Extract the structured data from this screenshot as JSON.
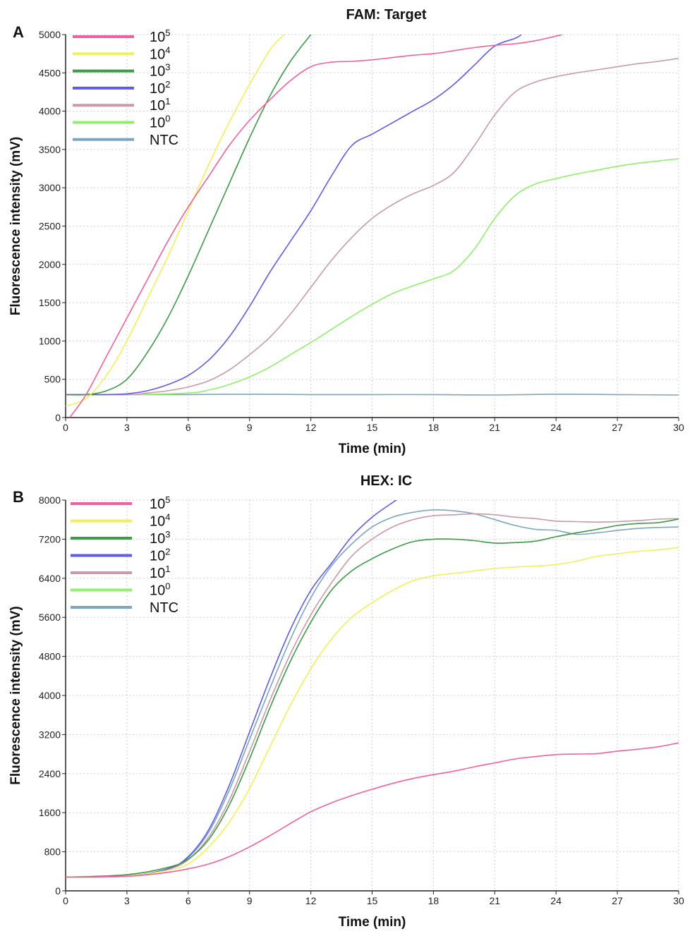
{
  "chart_data": [
    {
      "type": "line",
      "panel": "A",
      "title": "FAM: Target",
      "xlabel": "Time (min)",
      "ylabel": "Fluorescence intensity (mV)",
      "xlim": [
        0,
        30
      ],
      "ylim": [
        0,
        5000
      ],
      "xticks": [
        0,
        3,
        6,
        9,
        12,
        15,
        18,
        21,
        24,
        27,
        30
      ],
      "yticks": [
        0,
        500,
        1000,
        1500,
        2000,
        2500,
        3000,
        3500,
        4000,
        4500,
        5000
      ],
      "grid": true,
      "legend_position": "top-left",
      "series": [
        {
          "name": "10",
          "sup": "5",
          "color": "#f0609e",
          "x": [
            0.2,
            1,
            2,
            3,
            4,
            5,
            6,
            7,
            8,
            9,
            10,
            11,
            12,
            13,
            14,
            15,
            16,
            17,
            18,
            19,
            20,
            21,
            22,
            23,
            24,
            24.3
          ],
          "y": [
            0,
            300,
            800,
            1300,
            1800,
            2300,
            2750,
            3150,
            3550,
            3880,
            4150,
            4400,
            4580,
            4640,
            4650,
            4670,
            4700,
            4730,
            4750,
            4790,
            4830,
            4860,
            4880,
            4920,
            4980,
            5000
          ]
        },
        {
          "name": "10",
          "sup": "4",
          "color": "#f2f059",
          "x": [
            0,
            1,
            2,
            3,
            4,
            5,
            6,
            7,
            8,
            9,
            10,
            10.7
          ],
          "y": [
            150,
            250,
            550,
            1000,
            1550,
            2100,
            2700,
            3300,
            3850,
            4350,
            4800,
            5000
          ]
        },
        {
          "name": "10",
          "sup": "3",
          "color": "#3d9a45",
          "x": [
            0,
            1,
            2,
            3,
            4,
            5,
            6,
            7,
            8,
            9,
            10,
            11,
            12
          ],
          "y": [
            300,
            300,
            350,
            500,
            850,
            1300,
            1850,
            2450,
            3050,
            3650,
            4200,
            4650,
            5000
          ]
        },
        {
          "name": "10",
          "sup": "2",
          "color": "#5e5ce6",
          "x": [
            0,
            2,
            3,
            4,
            5,
            6,
            7,
            8,
            9,
            10,
            11,
            12,
            13,
            14,
            15,
            16,
            17,
            18,
            19,
            20,
            21,
            22,
            22.3
          ],
          "y": [
            300,
            300,
            310,
            350,
            430,
            550,
            750,
            1050,
            1450,
            1900,
            2300,
            2700,
            3150,
            3550,
            3700,
            3850,
            4000,
            4150,
            4350,
            4600,
            4850,
            4950,
            5000
          ]
        },
        {
          "name": "10",
          "sup": "1",
          "color": "#c99aa8",
          "x": [
            0,
            3,
            4,
            5,
            6,
            7,
            8,
            9,
            10,
            11,
            12,
            13,
            14,
            15,
            16,
            17,
            18,
            19,
            20,
            21,
            22,
            23,
            24,
            25,
            26,
            27,
            28,
            29,
            30
          ],
          "y": [
            300,
            300,
            320,
            350,
            400,
            480,
            620,
            820,
            1050,
            1350,
            1700,
            2050,
            2350,
            2600,
            2780,
            2920,
            3030,
            3200,
            3550,
            3950,
            4250,
            4380,
            4450,
            4500,
            4540,
            4580,
            4620,
            4650,
            4690
          ]
        },
        {
          "name": "10",
          "sup": "0",
          "color": "#8ff06c",
          "x": [
            0,
            3,
            6,
            7,
            8,
            9,
            10,
            11,
            12,
            13,
            14,
            15,
            16,
            17,
            18,
            19,
            20,
            21,
            22,
            23,
            24,
            25,
            26,
            27,
            28,
            29,
            30
          ],
          "y": [
            300,
            300,
            320,
            360,
            430,
            530,
            660,
            820,
            980,
            1150,
            1320,
            1480,
            1620,
            1720,
            1810,
            1920,
            2200,
            2600,
            2900,
            3050,
            3120,
            3180,
            3230,
            3280,
            3320,
            3350,
            3380
          ]
        },
        {
          "name": "NTC",
          "sup": "",
          "color": "#7aa6c2",
          "x": [
            0,
            3,
            6,
            9,
            12,
            15,
            18,
            21,
            24,
            27,
            30
          ],
          "y": [
            300,
            300,
            300,
            305,
            300,
            300,
            300,
            295,
            305,
            300,
            295
          ]
        }
      ]
    },
    {
      "type": "line",
      "panel": "B",
      "title": "HEX: IC",
      "xlabel": "Time (min)",
      "ylabel": "Fluorescence intensity (mV)",
      "xlim": [
        0,
        30
      ],
      "ylim": [
        0,
        8000
      ],
      "xticks": [
        0,
        3,
        6,
        9,
        12,
        15,
        18,
        21,
        24,
        27,
        30
      ],
      "yticks": [
        0,
        800,
        1600,
        2400,
        3200,
        4000,
        4800,
        5600,
        6400,
        7200,
        8000
      ],
      "grid": true,
      "legend_position": "top-left",
      "series": [
        {
          "name": "10",
          "sup": "5",
          "color": "#f0609e",
          "x": [
            0,
            3,
            4,
            5,
            6,
            7,
            8,
            9,
            10,
            11,
            12,
            13,
            14,
            15,
            16,
            17,
            18,
            19,
            20,
            21,
            22,
            23,
            24,
            25,
            26,
            27,
            28,
            29,
            30
          ],
          "y": [
            280,
            300,
            330,
            380,
            450,
            550,
            700,
            900,
            1130,
            1380,
            1620,
            1800,
            1950,
            2080,
            2200,
            2300,
            2380,
            2450,
            2540,
            2620,
            2700,
            2750,
            2790,
            2800,
            2810,
            2860,
            2900,
            2950,
            3030
          ]
        },
        {
          "name": "10",
          "sup": "4",
          "color": "#f2f059",
          "x": [
            0,
            3,
            5,
            6,
            7,
            8,
            9,
            10,
            11,
            12,
            13,
            14,
            15,
            16,
            17,
            18,
            19,
            20,
            21,
            22,
            23,
            24,
            25,
            26,
            27,
            28,
            29,
            30
          ],
          "y": [
            280,
            300,
            420,
            550,
            900,
            1400,
            2100,
            2950,
            3800,
            4550,
            5150,
            5600,
            5900,
            6150,
            6350,
            6450,
            6500,
            6550,
            6600,
            6630,
            6650,
            6680,
            6750,
            6850,
            6900,
            6950,
            6980,
            7030
          ]
        },
        {
          "name": "10",
          "sup": "3",
          "color": "#3d9a45",
          "x": [
            0,
            3,
            5,
            6,
            7,
            8,
            9,
            10,
            11,
            12,
            13,
            14,
            15,
            16,
            17,
            18,
            19,
            20,
            21,
            22,
            23,
            24,
            25,
            26,
            27,
            28,
            29,
            30
          ],
          "y": [
            280,
            330,
            480,
            650,
            1050,
            1750,
            2700,
            3750,
            4700,
            5500,
            6150,
            6550,
            6800,
            7000,
            7150,
            7200,
            7200,
            7170,
            7120,
            7130,
            7160,
            7250,
            7330,
            7400,
            7480,
            7520,
            7540,
            7610
          ]
        },
        {
          "name": "10",
          "sup": "2",
          "color": "#5e5ce6",
          "x": [
            0,
            3,
            5,
            6,
            7,
            8,
            9,
            10,
            11,
            12,
            13,
            14,
            15,
            16,
            16.2
          ],
          "y": [
            280,
            300,
            450,
            700,
            1250,
            2150,
            3250,
            4350,
            5350,
            6150,
            6700,
            7250,
            7650,
            7950,
            8000
          ]
        },
        {
          "name": "10",
          "sup": "1",
          "color": "#c99aa8",
          "x": [
            0,
            3,
            5,
            6,
            7,
            8,
            9,
            10,
            11,
            12,
            13,
            14,
            15,
            16,
            17,
            18,
            19,
            20,
            21,
            22,
            23,
            24,
            25,
            26,
            27,
            28,
            29,
            30
          ],
          "y": [
            280,
            300,
            440,
            640,
            1100,
            1850,
            2850,
            3900,
            4850,
            5650,
            6300,
            6850,
            7200,
            7450,
            7600,
            7680,
            7700,
            7720,
            7700,
            7650,
            7620,
            7570,
            7560,
            7550,
            7560,
            7580,
            7610,
            7620
          ]
        },
        {
          "name": "10",
          "sup": "0",
          "color": "#8ff06c",
          "x": [],
          "y": []
        },
        {
          "name": "NTC",
          "sup": "",
          "color": "#7aa6c2",
          "x": [
            0,
            3,
            5,
            6,
            7,
            8,
            9,
            10,
            11,
            12,
            13,
            14,
            15,
            16,
            17,
            18,
            19,
            20,
            21,
            22,
            23,
            24,
            25,
            26,
            27,
            28,
            29,
            30
          ],
          "y": [
            280,
            300,
            450,
            680,
            1200,
            2050,
            3100,
            4150,
            5150,
            6000,
            6650,
            7100,
            7450,
            7650,
            7750,
            7800,
            7780,
            7720,
            7600,
            7480,
            7400,
            7380,
            7300,
            7330,
            7380,
            7420,
            7440,
            7450
          ]
        }
      ]
    }
  ]
}
